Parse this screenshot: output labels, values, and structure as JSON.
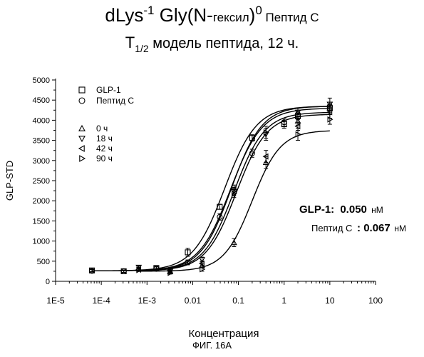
{
  "title": {
    "line1_main": "dLys",
    "line1_sup": "-1",
    "line1_mid": " Gly(N-",
    "line1_small": "гексил",
    "line1_close": ")",
    "line1_sup2": "0",
    "line1_tail": " Пептид С",
    "line2_T": "T",
    "line2_sub": "1/2",
    "line2_rest": " модель пептида, 12 ч."
  },
  "annotations": {
    "glp1_label": "GLP-1:",
    "glp1_value": "0.050",
    "glp1_unit": "нМ",
    "peptide_label": "Пептид С",
    "peptide_value": ": 0.067",
    "peptide_unit": "нМ"
  },
  "caption": "ФИГ. 16А",
  "chart_data": {
    "type": "scatter",
    "xlabel": "Концентрация",
    "ylabel": "GLP-STD",
    "x_scale": "log",
    "xlim": [
      1e-05,
      100
    ],
    "ylim": [
      0,
      5000
    ],
    "x_tick_labels": [
      "1E-5",
      "1E-4",
      "1E-3",
      "0.01",
      "0.1",
      "1",
      "10",
      "100"
    ],
    "y_ticks": [
      0,
      500,
      1000,
      1500,
      2000,
      2500,
      3000,
      3500,
      4000,
      4500,
      5000
    ],
    "legend_position": "top-left",
    "series": [
      {
        "name": "GLP-1",
        "marker": "square",
        "x": [
          6.25e-05,
          0.00031,
          0.0016,
          0.0078,
          0.039,
          0.2,
          1,
          2,
          10
        ],
        "y": [
          270,
          250,
          330,
          720,
          1850,
          3560,
          3900,
          4100,
          4300
        ],
        "err": [
          30,
          30,
          50,
          100,
          60,
          80,
          100,
          80,
          100
        ],
        "fit": {
          "bottom": 260,
          "top": 4350,
          "ec50": 0.05,
          "hill": 1.25
        }
      },
      {
        "name": "Пептид С",
        "marker": "circle",
        "x": [
          6.25e-05,
          0.00031,
          0.0016,
          0.0078,
          0.039,
          0.2,
          1,
          2,
          10
        ],
        "y": [
          260,
          250,
          310,
          470,
          1600,
          3180,
          3950,
          4150,
          4350
        ],
        "err": [
          30,
          30,
          50,
          60,
          80,
          100,
          100,
          100,
          100
        ],
        "fit": {
          "bottom": 260,
          "top": 4300,
          "ec50": 0.067,
          "hill": 1.25
        }
      },
      {
        "name": "0 ч",
        "marker": "triangle-up",
        "x": [
          0.00066,
          0.0032,
          0.016,
          0.08,
          0.4,
          2,
          10
        ],
        "y": [
          310,
          240,
          390,
          960,
          2950,
          3980,
          4300
        ],
        "err": [
          30,
          30,
          50,
          100,
          150,
          100,
          150
        ],
        "fit": {
          "bottom": 250,
          "top": 3750,
          "ec50": 0.2,
          "hill": 1.4
        }
      },
      {
        "name": "18 ч",
        "marker": "triangle-down",
        "x": [
          0.00066,
          0.0032,
          0.016,
          0.08,
          0.4,
          2,
          10
        ],
        "y": [
          350,
          250,
          540,
          2230,
          3650,
          4200,
          4400
        ],
        "err": [
          30,
          30,
          60,
          100,
          150,
          100,
          150
        ],
        "fit": {
          "bottom": 260,
          "top": 4350,
          "ec50": 0.07,
          "hill": 1.3
        }
      },
      {
        "name": "42 ч",
        "marker": "triangle-left",
        "x": [
          0.00066,
          0.0032,
          0.016,
          0.08,
          0.4,
          2,
          10
        ],
        "y": [
          290,
          270,
          440,
          2290,
          3100,
          3850,
          4200
        ],
        "err": [
          30,
          30,
          60,
          100,
          150,
          100,
          150
        ],
        "fit": {
          "bottom": 260,
          "top": 4200,
          "ec50": 0.08,
          "hill": 1.3
        }
      },
      {
        "name": "90 ч",
        "marker": "triangle-right",
        "x": [
          0.00066,
          0.0032,
          0.016,
          0.08,
          0.4,
          2,
          10
        ],
        "y": [
          280,
          210,
          300,
          2180,
          3700,
          3650,
          4020
        ],
        "err": [
          30,
          30,
          50,
          100,
          150,
          150,
          120
        ],
        "fit": {
          "bottom": 260,
          "top": 4150,
          "ec50": 0.09,
          "hill": 1.3
        }
      }
    ]
  }
}
